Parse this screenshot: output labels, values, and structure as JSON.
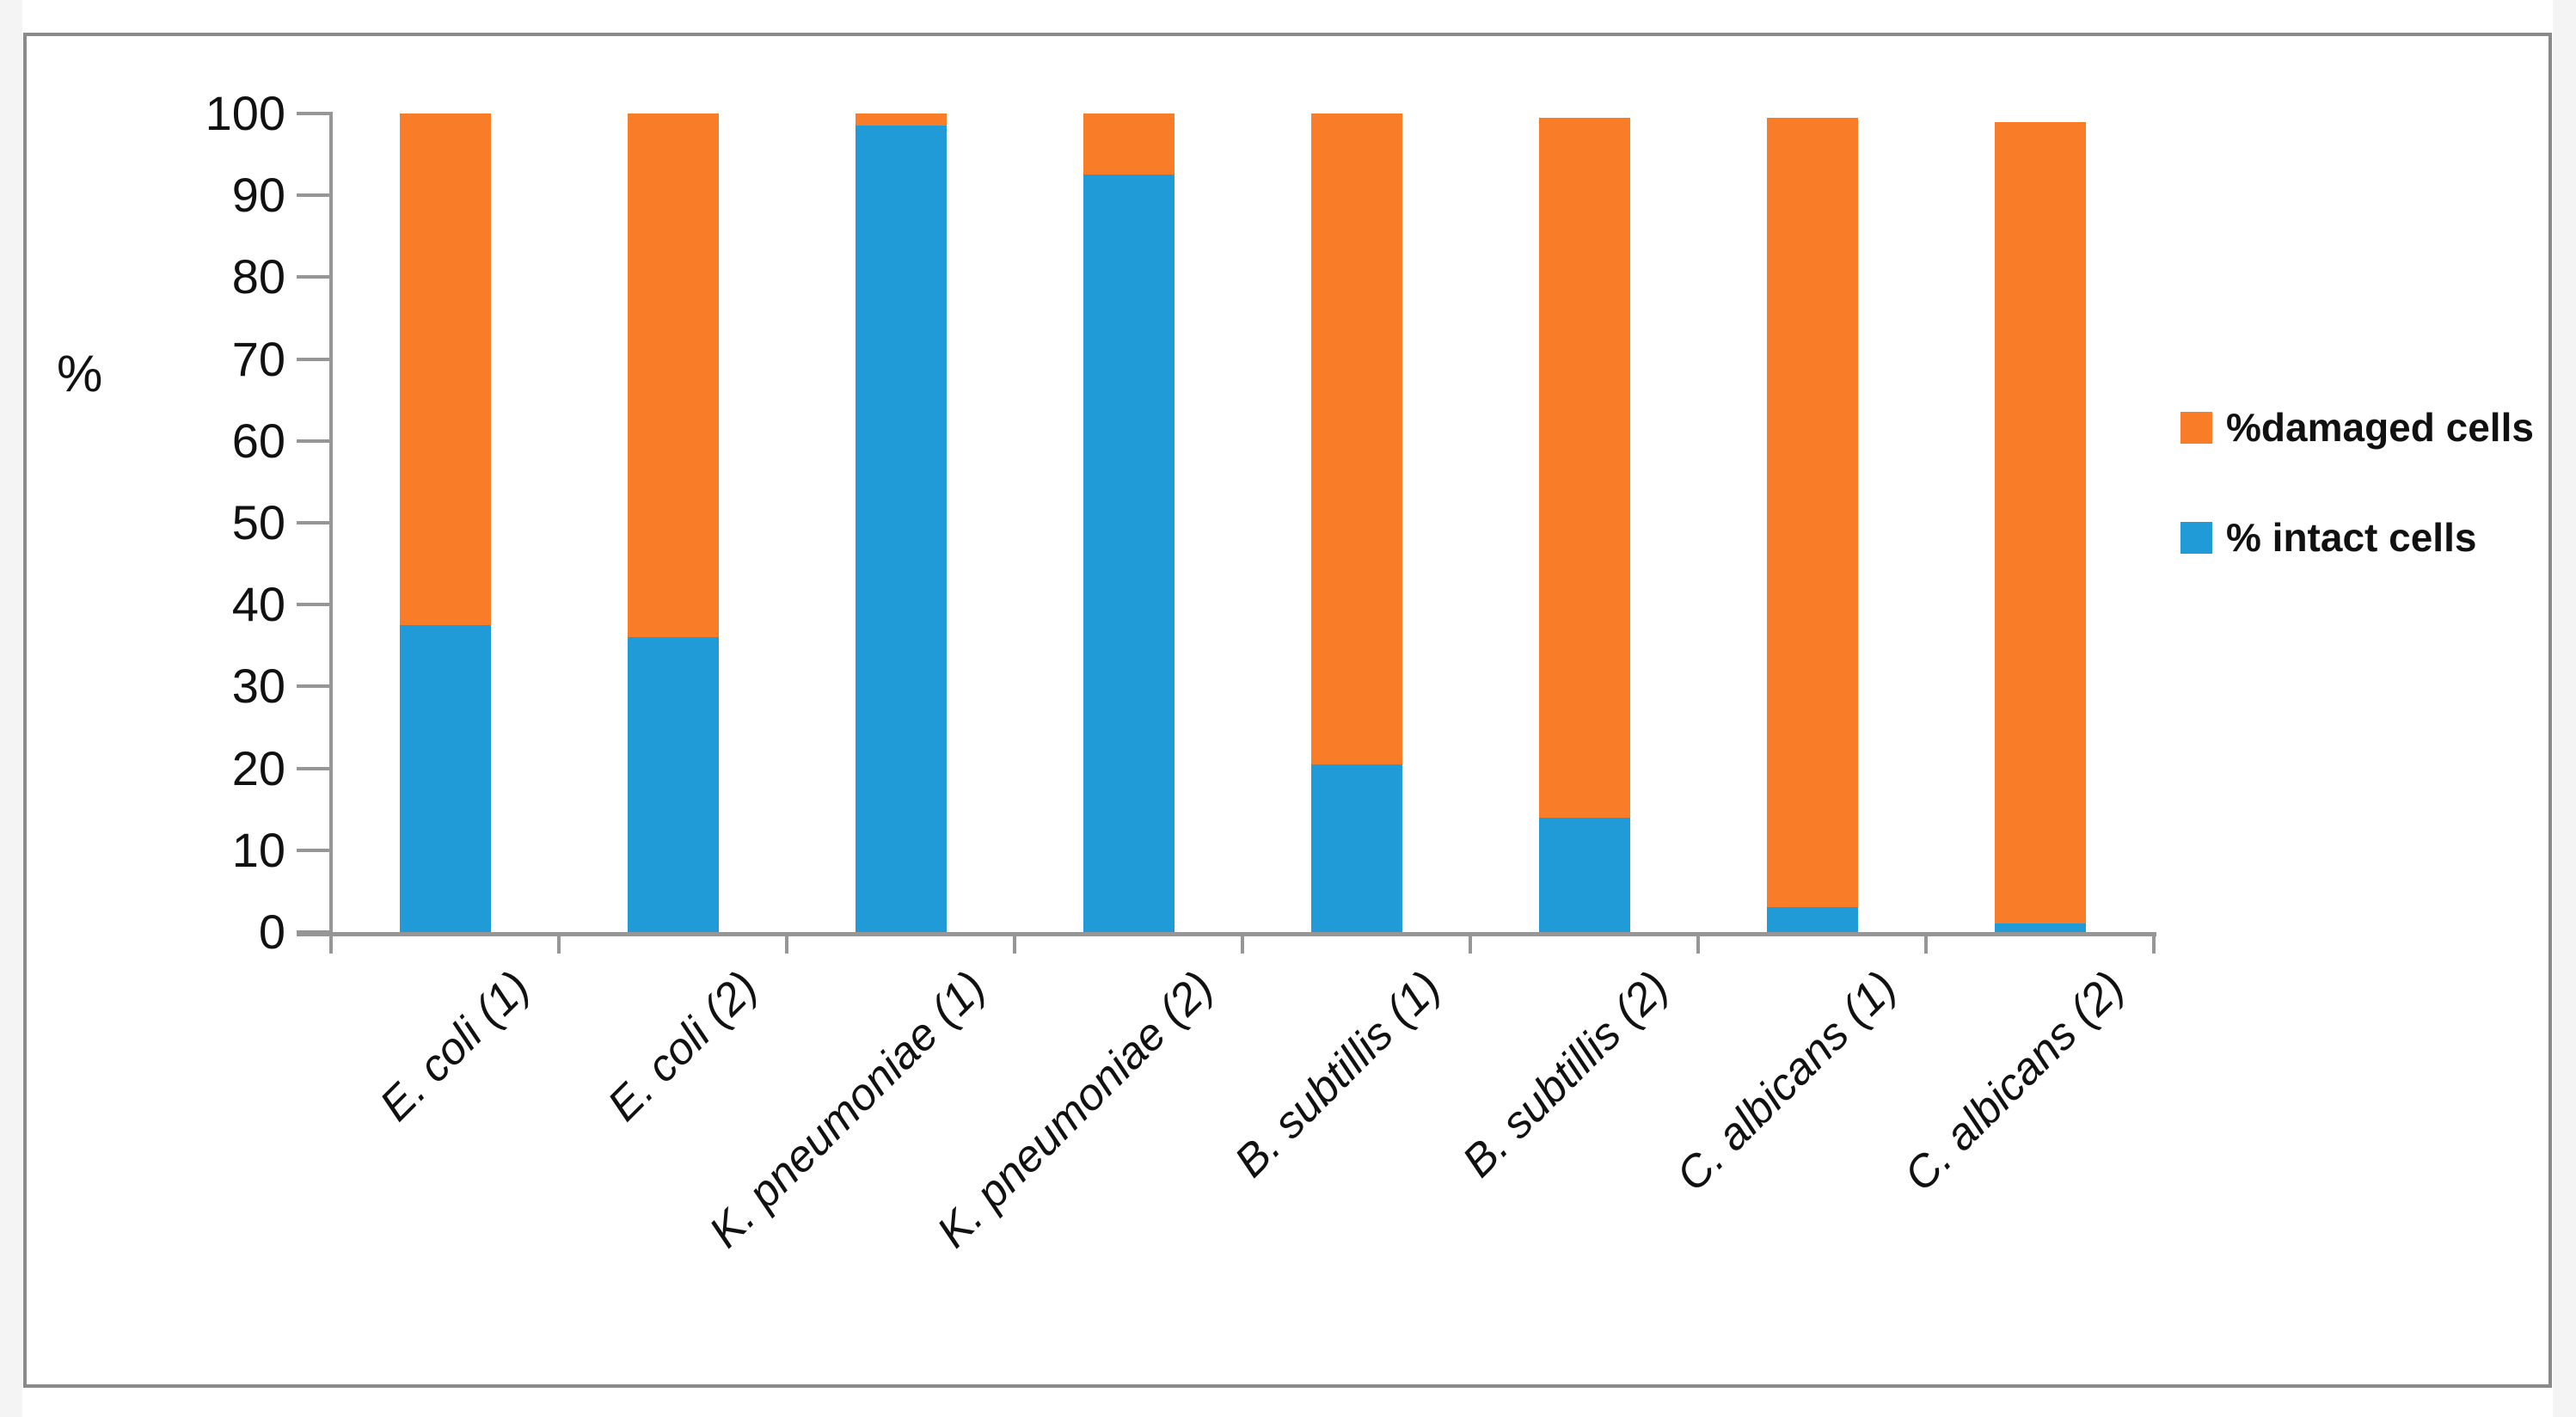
{
  "chart_data": {
    "type": "bar",
    "stacked": true,
    "title": "",
    "xlabel": "",
    "ylabel": "%",
    "ylim": [
      0,
      100
    ],
    "yticks": [
      100,
      90,
      80,
      70,
      60,
      50,
      40,
      30,
      20,
      10,
      0
    ],
    "grid": false,
    "legend_position": "right",
    "categories": [
      "E. coli (1)",
      "E. coli (2)",
      "K. pneumoniae (1)",
      "K. pneumoniae (2)",
      "B. subtillis (1)",
      "B. subtillis (2)",
      "C. albicans (1)",
      "C. albicans (2)"
    ],
    "series": [
      {
        "name": "%damaged cells",
        "color": "#f97d28",
        "values": [
          62.5,
          64,
          1.5,
          7.5,
          79.5,
          85.5,
          96.5,
          98
        ]
      },
      {
        "name": "% intact cells",
        "color": "#209bd8",
        "values": [
          37.5,
          36,
          98.5,
          92.5,
          20.5,
          14,
          3,
          1
        ]
      }
    ]
  }
}
